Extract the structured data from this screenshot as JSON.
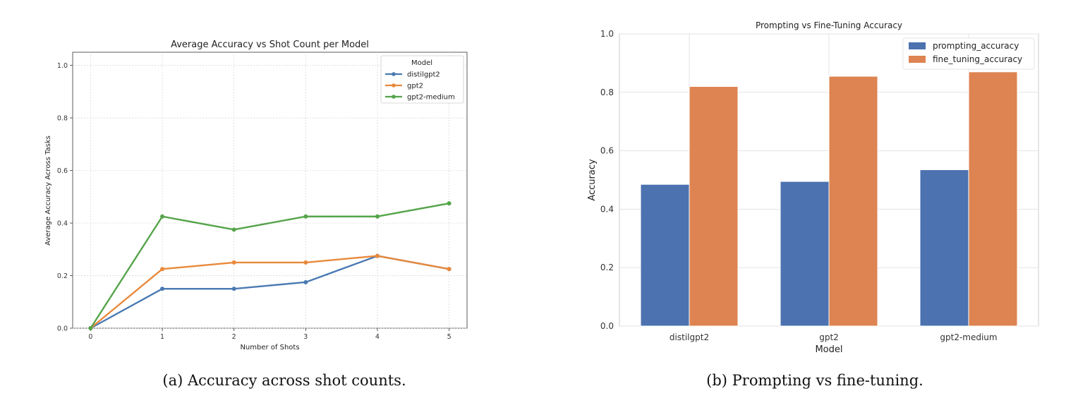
{
  "chart_data": [
    {
      "type": "line",
      "title": "Average Accuracy vs Shot Count per Model",
      "xlabel": "Number of Shots",
      "ylabel": "Average Accuracy Across Tasks",
      "x": [
        0,
        1,
        2,
        3,
        4,
        5
      ],
      "xlim": [
        -0.25,
        5.25
      ],
      "ylim": [
        0,
        1.05
      ],
      "yticks": [
        0.0,
        0.2,
        0.4,
        0.6,
        0.8,
        1.0
      ],
      "grid": true,
      "legend_title": "Model",
      "legend_position": "top-right",
      "series": [
        {
          "name": "distilgpt2",
          "color": "#4a7ab3",
          "values": [
            0.0,
            0.15,
            0.15,
            0.175,
            0.275,
            0.225
          ]
        },
        {
          "name": "gpt2",
          "color": "#e8893b",
          "values": [
            0.0,
            0.225,
            0.25,
            0.25,
            0.275,
            0.225
          ]
        },
        {
          "name": "gpt2-medium",
          "color": "#55a44a",
          "values": [
            0.0,
            0.425,
            0.375,
            0.425,
            0.425,
            0.475
          ]
        }
      ]
    },
    {
      "type": "bar",
      "title": "Prompting vs Fine-Tuning Accuracy",
      "xlabel": "Model",
      "ylabel": "Accuracy",
      "categories": [
        "distilgpt2",
        "gpt2",
        "gpt2-medium"
      ],
      "ylim": [
        0,
        1.0
      ],
      "yticks": [
        0.0,
        0.2,
        0.4,
        0.6,
        0.8,
        1.0
      ],
      "grid": true,
      "legend_position": "top-right",
      "series": [
        {
          "name": "prompting_accuracy",
          "color": "#4c72b0",
          "values": [
            0.485,
            0.495,
            0.535
          ]
        },
        {
          "name": "fine_tuning_accuracy",
          "color": "#dd8452",
          "values": [
            0.82,
            0.855,
            0.87
          ]
        }
      ]
    }
  ],
  "captions": {
    "a": "(a)  Accuracy across shot counts.",
    "b": "(b)  Prompting vs fine-tuning."
  }
}
